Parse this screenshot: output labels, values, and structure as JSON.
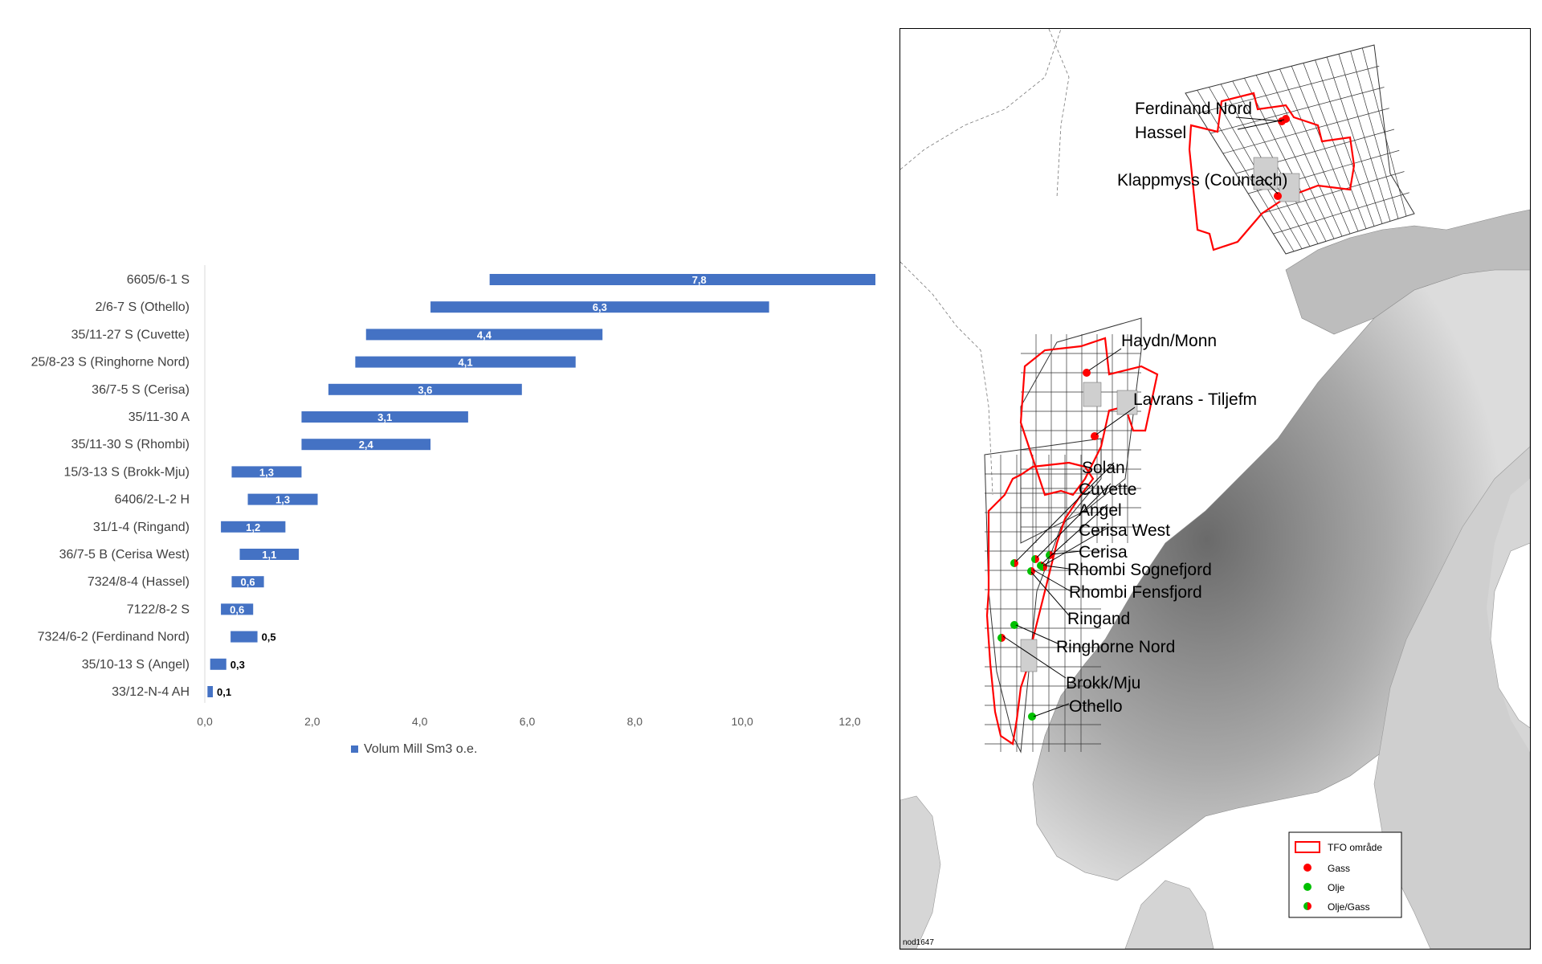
{
  "chart_data": {
    "type": "bar",
    "orientation": "horizontal-floating",
    "categories": [
      "6605/6-1 S",
      "2/6-7 S (Othello)",
      "35/11-27 S (Cuvette)",
      "25/8-23 S (Ringhorne Nord)",
      "36/7-5 S (Cerisa)",
      "35/11-30 A",
      "35/11-30 S (Rhombi)",
      "15/3-13 S (Brokk-Mju)",
      "6406/2-L-2 H",
      "31/1-4 (Ringand)",
      "36/7-5 B (Cerisa West)",
      "7324/8-4 (Hassel)",
      "7122/8-2 S",
      "7324/6-2 (Ferdinand Nord)",
      "35/10-13 S (Angel)",
      "33/12-N-4 AH"
    ],
    "starts": [
      5.3,
      4.2,
      3.0,
      2.8,
      2.3,
      1.8,
      1.8,
      0.5,
      0.8,
      0.3,
      0.65,
      0.5,
      0.3,
      0.48,
      0.1,
      0.05
    ],
    "values": [
      7.8,
      6.3,
      4.4,
      4.1,
      3.6,
      3.1,
      2.4,
      1.3,
      1.3,
      1.2,
      1.1,
      0.6,
      0.6,
      0.5,
      0.3,
      0.1
    ],
    "value_labels": [
      "7,8",
      "6,3",
      "4,4",
      "4,1",
      "3,6",
      "3,1",
      "2,4",
      "1,3",
      "1,3",
      "1,2",
      "1,1",
      "0,6",
      "0,6",
      "0,5",
      "0,3",
      "0,1"
    ],
    "xlim": [
      0,
      12
    ],
    "x_ticks": [
      "0,0",
      "2,0",
      "4,0",
      "6,0",
      "8,0",
      "10,0",
      "12,0"
    ],
    "series": [
      {
        "name": "Volum Mill Sm3 o.e."
      }
    ],
    "legend_position": "bottom",
    "bar_color": "#4472c4",
    "title": "",
    "xlabel": "",
    "ylabel": ""
  },
  "map": {
    "labels": {
      "ferdinand_nord": "Ferdinand Nord",
      "hassel": "Hassel",
      "klappmyss": "Klappmyss (Countach)",
      "haydn_monn": "Haydn/Monn",
      "lavrans": "Lavrans - Tiljefm",
      "solan": "Solan",
      "cuvette": "Cuvette",
      "angel": "Angel",
      "cerisa_west": "Cerisa West",
      "cerisa": "Cerisa",
      "rhombi_sognefjord": "Rhombi Sognefjord",
      "rhombi_fensfjord": "Rhombi Fensfjord",
      "ringand": "Ringand",
      "ringhorne_nord": "Ringhorne Nord",
      "brokk_mju": "Brokk/Mju",
      "othello": "Othello"
    },
    "legend": {
      "tfo": "TFO område",
      "gass": "Gass",
      "olje": "Olje",
      "olje_gass": "Olje/Gass"
    },
    "colors": {
      "tfo": "#ff0000",
      "gass": "#ff0000",
      "olje": "#00c000"
    },
    "footer": "nod1647"
  }
}
